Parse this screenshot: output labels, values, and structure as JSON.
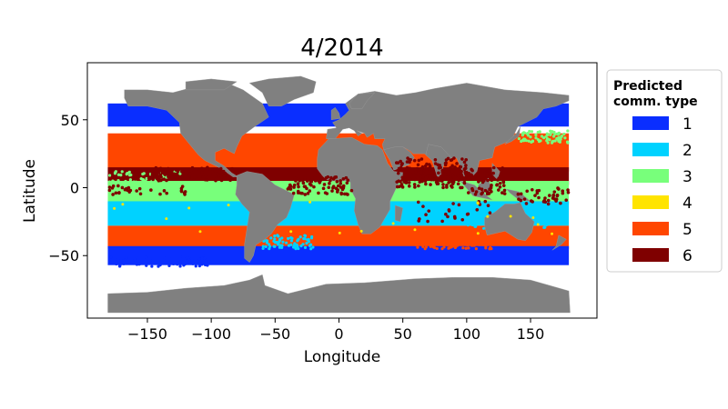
{
  "chart_data": {
    "type": "scatter",
    "title": "4/2014",
    "xlabel": "Longitude",
    "ylabel": "Latitude",
    "xlim": [
      -197,
      202
    ],
    "ylim": [
      -96,
      92
    ],
    "xticks": [
      -150,
      -100,
      -50,
      0,
      50,
      100,
      150
    ],
    "xtick_labels": [
      "−150",
      "−100",
      "−50",
      "0",
      "50",
      "100",
      "150"
    ],
    "yticks": [
      50,
      0,
      -50
    ],
    "ytick_labels": [
      "50",
      "0",
      "−50"
    ],
    "grid": false,
    "legend": {
      "title_line1": "Predicted",
      "title_line2": "comm. type",
      "placement": "outside-right-top",
      "entries": [
        {
          "label": "1",
          "color": "#0a2eff"
        },
        {
          "label": "2",
          "color": "#00d2ff"
        },
        {
          "label": "3",
          "color": "#78ff7b"
        },
        {
          "label": "4",
          "color": "#ffe400"
        },
        {
          "label": "5",
          "color": "#ff4600"
        },
        {
          "label": "6",
          "color": "#7f0000"
        }
      ]
    },
    "land_color": "#808080",
    "bands": [
      {
        "type": 1,
        "lat": [
          45,
          62
        ]
      },
      {
        "type": 5,
        "lat": [
          12,
          40
        ]
      },
      {
        "type": 6,
        "lat": [
          2,
          15
        ]
      },
      {
        "type": 3,
        "lat": [
          -12,
          5
        ]
      },
      {
        "type": 2,
        "lat": [
          -28,
          -10
        ]
      },
      {
        "type": 5,
        "lat": [
          -45,
          -28
        ]
      },
      {
        "type": 1,
        "lat": [
          -57,
          -43
        ]
      }
    ]
  }
}
